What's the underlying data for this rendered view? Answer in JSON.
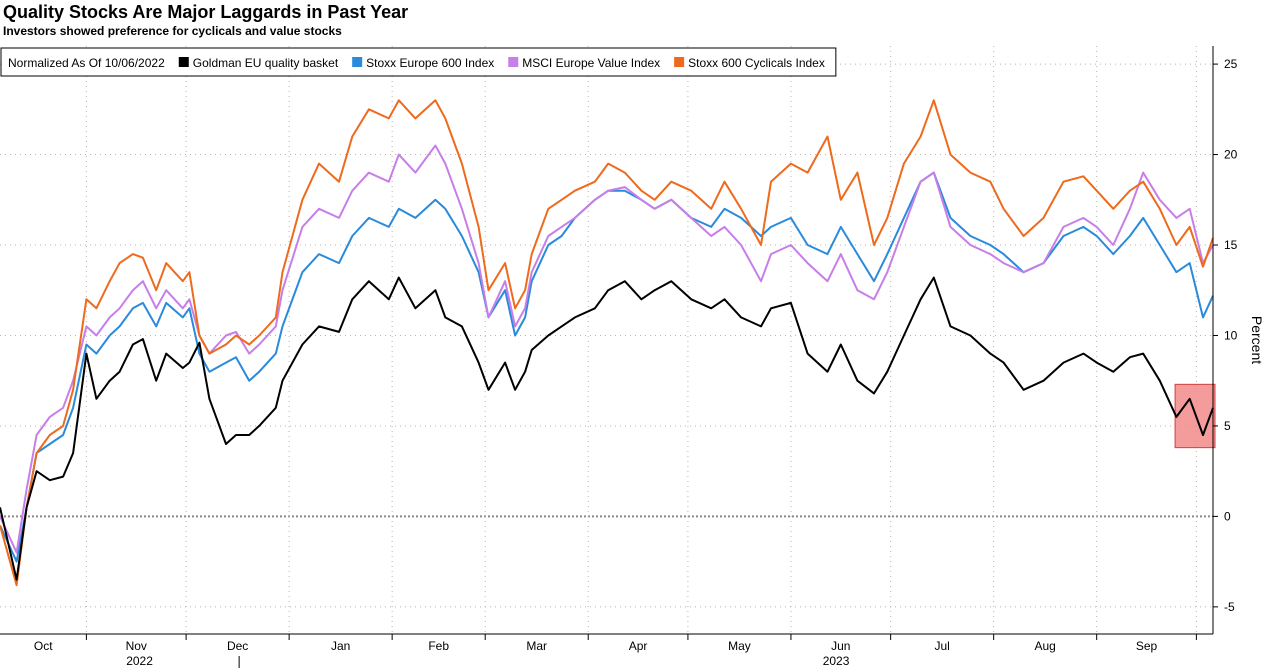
{
  "header": {
    "title": "Quality Stocks Are Major Laggards in Past Year",
    "subtitle": "Investors showed preference for cyclicals and value stocks"
  },
  "chart_data": {
    "type": "line",
    "ylabel": "Percent",
    "ylim": [
      -6.5,
      26
    ],
    "yticks": [
      25,
      20,
      15,
      10,
      5,
      0,
      -5
    ],
    "x_start": "2022-10-06",
    "x_end": "2023-10-06",
    "month_labels": [
      "Oct",
      "Nov",
      "Dec",
      "Jan",
      "Feb",
      "Mar",
      "Apr",
      "May",
      "Jun",
      "Jul",
      "Aug",
      "Sep"
    ],
    "year_labels": [
      "2022",
      "2023"
    ],
    "legend_note": "Normalized As Of 10/06/2022",
    "legend_position": "top-left",
    "grid": true,
    "highlight": {
      "x_start": "2023-09-27",
      "x_end": "2023-10-06",
      "y_low": 3.8,
      "y_high": 7.3,
      "color": "#f28b8b"
    },
    "series": [
      {
        "name": "Goldman EU quality basket",
        "color": "#000000",
        "dates": [
          "2022-10-06",
          "2022-10-11",
          "2022-10-14",
          "2022-10-17",
          "2022-10-21",
          "2022-10-25",
          "2022-10-28",
          "2022-11-01",
          "2022-11-04",
          "2022-11-08",
          "2022-11-11",
          "2022-11-15",
          "2022-11-18",
          "2022-11-22",
          "2022-11-25",
          "2022-11-30",
          "2022-12-02",
          "2022-12-05",
          "2022-12-08",
          "2022-12-13",
          "2022-12-16",
          "2022-12-20",
          "2022-12-23",
          "2022-12-28",
          "2022-12-30",
          "2023-01-05",
          "2023-01-10",
          "2023-01-16",
          "2023-01-20",
          "2023-01-25",
          "2023-01-31",
          "2023-02-03",
          "2023-02-08",
          "2023-02-14",
          "2023-02-17",
          "2023-02-22",
          "2023-02-27",
          "2023-03-02",
          "2023-03-07",
          "2023-03-10",
          "2023-03-13",
          "2023-03-15",
          "2023-03-20",
          "2023-03-24",
          "2023-03-28",
          "2023-04-03",
          "2023-04-07",
          "2023-04-12",
          "2023-04-17",
          "2023-04-21",
          "2023-04-26",
          "2023-05-02",
          "2023-05-08",
          "2023-05-12",
          "2023-05-17",
          "2023-05-23",
          "2023-05-26",
          "2023-06-01",
          "2023-06-06",
          "2023-06-12",
          "2023-06-16",
          "2023-06-21",
          "2023-06-26",
          "2023-06-30",
          "2023-07-05",
          "2023-07-10",
          "2023-07-14",
          "2023-07-19",
          "2023-07-25",
          "2023-07-31",
          "2023-08-04",
          "2023-08-10",
          "2023-08-16",
          "2023-08-22",
          "2023-08-28",
          "2023-09-01",
          "2023-09-06",
          "2023-09-11",
          "2023-09-15",
          "2023-09-20",
          "2023-09-25",
          "2023-09-29",
          "2023-10-03",
          "2023-10-06"
        ],
        "values": [
          0.5,
          -3.5,
          0.5,
          2.5,
          2.0,
          2.2,
          3.5,
          9.0,
          6.5,
          7.5,
          8.0,
          9.5,
          9.8,
          7.5,
          9.0,
          8.2,
          8.5,
          9.6,
          6.5,
          4.0,
          4.5,
          4.5,
          5.0,
          6.0,
          7.5,
          9.5,
          10.5,
          10.2,
          12.0,
          13.0,
          12.0,
          13.2,
          11.5,
          12.5,
          11.0,
          10.5,
          8.5,
          7.0,
          8.5,
          7.0,
          8.0,
          9.2,
          10.0,
          10.5,
          11.0,
          11.5,
          12.5,
          13.0,
          12.0,
          12.5,
          13.0,
          12.0,
          11.5,
          12.0,
          11.0,
          10.5,
          11.5,
          11.8,
          9.0,
          8.0,
          9.5,
          7.5,
          6.8,
          8.0,
          10.0,
          12.0,
          13.2,
          10.5,
          10.0,
          9.0,
          8.5,
          7.0,
          7.5,
          8.5,
          9.0,
          8.5,
          8.0,
          8.8,
          9.0,
          7.5,
          5.5,
          6.5,
          4.5,
          6.0
        ]
      },
      {
        "name": "Stoxx Europe 600 Index",
        "color": "#2a8adb",
        "dates": [
          "2022-10-06",
          "2022-10-11",
          "2022-10-14",
          "2022-10-17",
          "2022-10-21",
          "2022-10-25",
          "2022-10-28",
          "2022-11-01",
          "2022-11-04",
          "2022-11-08",
          "2022-11-11",
          "2022-11-15",
          "2022-11-18",
          "2022-11-22",
          "2022-11-25",
          "2022-11-30",
          "2022-12-02",
          "2022-12-05",
          "2022-12-08",
          "2022-12-13",
          "2022-12-16",
          "2022-12-20",
          "2022-12-23",
          "2022-12-28",
          "2022-12-30",
          "2023-01-05",
          "2023-01-10",
          "2023-01-16",
          "2023-01-20",
          "2023-01-25",
          "2023-01-31",
          "2023-02-03",
          "2023-02-08",
          "2023-02-14",
          "2023-02-17",
          "2023-02-22",
          "2023-02-27",
          "2023-03-02",
          "2023-03-07",
          "2023-03-10",
          "2023-03-13",
          "2023-03-15",
          "2023-03-20",
          "2023-03-24",
          "2023-03-28",
          "2023-04-03",
          "2023-04-07",
          "2023-04-12",
          "2023-04-17",
          "2023-04-21",
          "2023-04-26",
          "2023-05-02",
          "2023-05-08",
          "2023-05-12",
          "2023-05-17",
          "2023-05-23",
          "2023-05-26",
          "2023-06-01",
          "2023-06-06",
          "2023-06-12",
          "2023-06-16",
          "2023-06-21",
          "2023-06-26",
          "2023-06-30",
          "2023-07-05",
          "2023-07-10",
          "2023-07-14",
          "2023-07-19",
          "2023-07-25",
          "2023-07-31",
          "2023-08-04",
          "2023-08-10",
          "2023-08-16",
          "2023-08-22",
          "2023-08-28",
          "2023-09-01",
          "2023-09-06",
          "2023-09-11",
          "2023-09-15",
          "2023-09-20",
          "2023-09-25",
          "2023-09-29",
          "2023-10-03",
          "2023-10-06"
        ],
        "values": [
          -0.5,
          -2.5,
          0.5,
          3.5,
          4.0,
          4.5,
          6.0,
          9.5,
          9.0,
          10.0,
          10.5,
          11.5,
          11.8,
          10.5,
          11.8,
          11.0,
          11.5,
          9.0,
          8.0,
          8.5,
          8.8,
          7.5,
          8.0,
          9.0,
          10.5,
          13.5,
          14.5,
          14.0,
          15.5,
          16.5,
          16.0,
          17.0,
          16.5,
          17.5,
          17.0,
          15.5,
          13.5,
          11.0,
          12.5,
          10.0,
          11.0,
          13.0,
          15.0,
          15.5,
          16.5,
          17.5,
          18.0,
          18.0,
          17.5,
          17.0,
          17.5,
          16.5,
          16.0,
          17.0,
          16.5,
          15.5,
          16.0,
          16.5,
          15.0,
          14.5,
          16.0,
          14.5,
          13.0,
          14.5,
          16.5,
          18.5,
          19.0,
          16.5,
          15.5,
          15.0,
          14.5,
          13.5,
          14.0,
          15.5,
          16.0,
          15.5,
          14.5,
          15.5,
          16.5,
          15.0,
          13.5,
          14.0,
          11.0,
          12.2
        ]
      },
      {
        "name": "MSCI Europe Value Index",
        "color": "#c77ee8",
        "dates": [
          "2022-10-06",
          "2022-10-11",
          "2022-10-14",
          "2022-10-17",
          "2022-10-21",
          "2022-10-25",
          "2022-10-28",
          "2022-11-01",
          "2022-11-04",
          "2022-11-08",
          "2022-11-11",
          "2022-11-15",
          "2022-11-18",
          "2022-11-22",
          "2022-11-25",
          "2022-11-30",
          "2022-12-02",
          "2022-12-05",
          "2022-12-08",
          "2022-12-13",
          "2022-12-16",
          "2022-12-20",
          "2022-12-23",
          "2022-12-28",
          "2022-12-30",
          "2023-01-05",
          "2023-01-10",
          "2023-01-16",
          "2023-01-20",
          "2023-01-25",
          "2023-01-31",
          "2023-02-03",
          "2023-02-08",
          "2023-02-14",
          "2023-02-17",
          "2023-02-22",
          "2023-02-27",
          "2023-03-02",
          "2023-03-07",
          "2023-03-10",
          "2023-03-13",
          "2023-03-15",
          "2023-03-20",
          "2023-03-24",
          "2023-03-28",
          "2023-04-03",
          "2023-04-07",
          "2023-04-12",
          "2023-04-17",
          "2023-04-21",
          "2023-04-26",
          "2023-05-02",
          "2023-05-08",
          "2023-05-12",
          "2023-05-17",
          "2023-05-23",
          "2023-05-26",
          "2023-06-01",
          "2023-06-06",
          "2023-06-12",
          "2023-06-16",
          "2023-06-21",
          "2023-06-26",
          "2023-06-30",
          "2023-07-05",
          "2023-07-10",
          "2023-07-14",
          "2023-07-19",
          "2023-07-25",
          "2023-07-31",
          "2023-08-04",
          "2023-08-10",
          "2023-08-16",
          "2023-08-22",
          "2023-08-28",
          "2023-09-01",
          "2023-09-06",
          "2023-09-11",
          "2023-09-15",
          "2023-09-20",
          "2023-09-25",
          "2023-09-29",
          "2023-10-03",
          "2023-10-06"
        ],
        "values": [
          0.0,
          -2.0,
          1.5,
          4.5,
          5.5,
          6.0,
          7.5,
          10.5,
          10.0,
          11.0,
          11.5,
          12.5,
          13.0,
          11.5,
          12.5,
          11.5,
          12.0,
          10.0,
          9.0,
          10.0,
          10.2,
          9.0,
          9.5,
          10.5,
          12.5,
          16.0,
          17.0,
          16.5,
          18.0,
          19.0,
          18.5,
          20.0,
          19.0,
          20.5,
          19.5,
          17.0,
          14.0,
          11.0,
          13.0,
          10.5,
          11.5,
          13.5,
          15.5,
          16.0,
          16.5,
          17.5,
          18.0,
          18.2,
          17.5,
          17.0,
          17.5,
          16.5,
          15.5,
          16.0,
          15.0,
          13.0,
          14.5,
          15.0,
          14.0,
          13.0,
          14.5,
          12.5,
          12.0,
          13.5,
          16.0,
          18.5,
          19.0,
          16.0,
          15.0,
          14.5,
          14.0,
          13.5,
          14.0,
          16.0,
          16.5,
          16.0,
          15.0,
          17.0,
          19.0,
          17.5,
          16.5,
          17.0,
          14.0,
          15.0
        ]
      },
      {
        "name": "Stoxx 600 Cyclicals Index",
        "color": "#ee6a1c",
        "dates": [
          "2022-10-06",
          "2022-10-11",
          "2022-10-14",
          "2022-10-17",
          "2022-10-21",
          "2022-10-25",
          "2022-10-28",
          "2022-11-01",
          "2022-11-04",
          "2022-11-08",
          "2022-11-11",
          "2022-11-15",
          "2022-11-18",
          "2022-11-22",
          "2022-11-25",
          "2022-11-30",
          "2022-12-02",
          "2022-12-05",
          "2022-12-08",
          "2022-12-13",
          "2022-12-16",
          "2022-12-20",
          "2022-12-23",
          "2022-12-28",
          "2022-12-30",
          "2023-01-05",
          "2023-01-10",
          "2023-01-16",
          "2023-01-20",
          "2023-01-25",
          "2023-01-31",
          "2023-02-03",
          "2023-02-08",
          "2023-02-14",
          "2023-02-17",
          "2023-02-22",
          "2023-02-27",
          "2023-03-02",
          "2023-03-07",
          "2023-03-10",
          "2023-03-13",
          "2023-03-15",
          "2023-03-20",
          "2023-03-24",
          "2023-03-28",
          "2023-04-03",
          "2023-04-07",
          "2023-04-12",
          "2023-04-17",
          "2023-04-21",
          "2023-04-26",
          "2023-05-02",
          "2023-05-08",
          "2023-05-12",
          "2023-05-17",
          "2023-05-23",
          "2023-05-26",
          "2023-06-01",
          "2023-06-06",
          "2023-06-12",
          "2023-06-16",
          "2023-06-21",
          "2023-06-26",
          "2023-06-30",
          "2023-07-05",
          "2023-07-10",
          "2023-07-14",
          "2023-07-19",
          "2023-07-25",
          "2023-07-31",
          "2023-08-04",
          "2023-08-10",
          "2023-08-16",
          "2023-08-22",
          "2023-08-28",
          "2023-09-01",
          "2023-09-06",
          "2023-09-11",
          "2023-09-15",
          "2023-09-20",
          "2023-09-25",
          "2023-09-29",
          "2023-10-03",
          "2023-10-06"
        ],
        "values": [
          -0.5,
          -3.8,
          0.5,
          3.5,
          4.5,
          5.0,
          7.0,
          12.0,
          11.5,
          13.0,
          14.0,
          14.5,
          14.3,
          12.5,
          14.0,
          13.0,
          13.5,
          10.0,
          9.0,
          9.5,
          10.0,
          9.5,
          10.0,
          11.0,
          13.5,
          17.5,
          19.5,
          18.5,
          21.0,
          22.5,
          22.0,
          23.0,
          22.0,
          23.0,
          22.0,
          19.5,
          16.0,
          12.5,
          14.0,
          11.5,
          12.5,
          14.5,
          17.0,
          17.5,
          18.0,
          18.5,
          19.5,
          19.0,
          18.0,
          17.5,
          18.5,
          18.0,
          17.0,
          18.5,
          17.0,
          15.0,
          18.5,
          19.5,
          19.0,
          21.0,
          17.5,
          19.0,
          15.0,
          16.5,
          19.5,
          21.0,
          23.0,
          20.0,
          19.0,
          18.5,
          17.0,
          15.5,
          16.5,
          18.5,
          18.8,
          18.0,
          17.0,
          18.0,
          18.5,
          17.0,
          15.0,
          16.0,
          13.8,
          15.4
        ]
      }
    ]
  }
}
